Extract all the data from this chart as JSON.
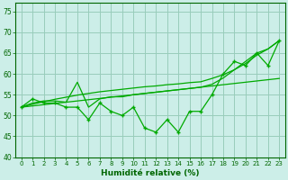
{
  "xlabel": "Humidité relative (%)",
  "bg_color": "#cceee8",
  "grid_color": "#99ccbb",
  "line_color": "#00aa00",
  "x_data": [
    0,
    1,
    2,
    3,
    4,
    5,
    6,
    7,
    8,
    9,
    10,
    11,
    12,
    13,
    14,
    15,
    16,
    17,
    18,
    19,
    20,
    21,
    22,
    23
  ],
  "y_main": [
    52,
    54,
    53,
    53,
    52,
    52,
    49,
    53,
    51,
    50,
    52,
    47,
    46,
    49,
    46,
    51,
    51,
    55,
    60,
    63,
    62,
    65,
    62,
    68
  ],
  "y_trend1": [
    52.0,
    52.3,
    52.6,
    52.9,
    53.2,
    53.5,
    53.8,
    54.1,
    54.4,
    54.7,
    55.0,
    55.3,
    55.6,
    55.9,
    56.2,
    56.5,
    56.8,
    57.1,
    57.4,
    57.7,
    58.0,
    58.3,
    58.6,
    58.9
  ],
  "y_trend2": [
    52.0,
    52.7,
    53.3,
    53.9,
    54.4,
    54.9,
    55.3,
    55.7,
    56.0,
    56.3,
    56.6,
    56.9,
    57.1,
    57.4,
    57.6,
    57.9,
    58.1,
    58.9,
    59.8,
    61.0,
    62.5,
    64.5,
    66.0,
    68.0
  ],
  "y_curve3": [
    52.0,
    53.0,
    53.5,
    53.5,
    53.2,
    58.0,
    52.0,
    54.0,
    54.5,
    54.5,
    55.0,
    55.3,
    55.6,
    55.9,
    56.2,
    56.5,
    56.8,
    57.5,
    59.0,
    61.0,
    63.0,
    65.0,
    66.0,
    68.0
  ],
  "ylim": [
    40,
    77
  ],
  "xlim": [
    -0.5,
    23.5
  ],
  "yticks": [
    40,
    45,
    50,
    55,
    60,
    65,
    70,
    75
  ],
  "xticks": [
    0,
    1,
    2,
    3,
    4,
    5,
    6,
    7,
    8,
    9,
    10,
    11,
    12,
    13,
    14,
    15,
    16,
    17,
    18,
    19,
    20,
    21,
    22,
    23
  ],
  "tick_fontsize": 5.0,
  "xlabel_fontsize": 6.5
}
